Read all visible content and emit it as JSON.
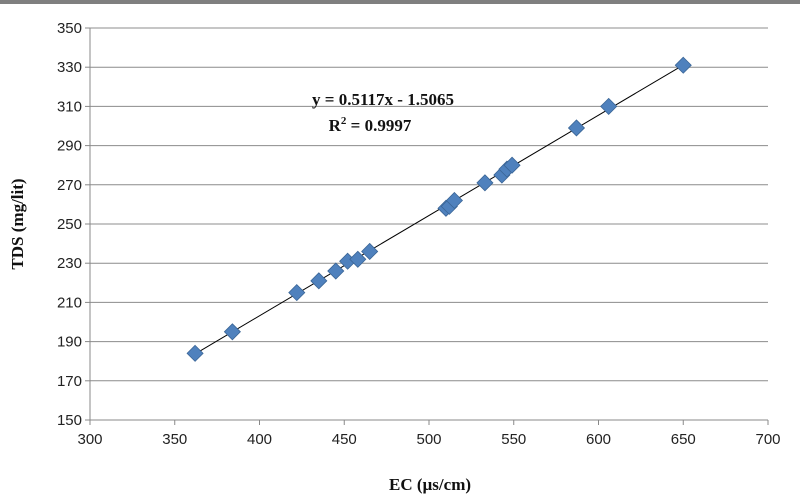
{
  "chart_data": {
    "type": "scatter",
    "title": "",
    "xlabel": "EC (µs/cm)",
    "ylabel": "TDS (mg/lit)",
    "xlim": [
      300,
      700
    ],
    "ylim": [
      150,
      350
    ],
    "x_ticks": [
      "300",
      "350",
      "400",
      "450",
      "500",
      "550",
      "600",
      "650",
      "700"
    ],
    "y_ticks": [
      "150",
      "170",
      "190",
      "210",
      "230",
      "250",
      "270",
      "290",
      "310",
      "330",
      "350"
    ],
    "grid": "horizontal",
    "marker_color": "#4f81bd",
    "trendline_color": "#000000",
    "series": [
      {
        "x": [
          362,
          384,
          422,
          435,
          445,
          452,
          458,
          465,
          510,
          512,
          515,
          533,
          543,
          546,
          549,
          587,
          606,
          650
        ],
        "y": [
          184,
          195,
          215,
          221,
          226,
          231,
          232,
          236,
          258,
          259,
          262,
          271,
          275,
          278,
          280,
          299,
          310,
          331
        ]
      }
    ],
    "trendline": {
      "slope": 0.5117,
      "intercept": -1.5065,
      "x_range": [
        362,
        650
      ],
      "equation_label": "y = 0.5117x - 1.5065",
      "r2_prefix": "R",
      "r2_sup": "2",
      "r2_value": " = 0.9997"
    }
  }
}
